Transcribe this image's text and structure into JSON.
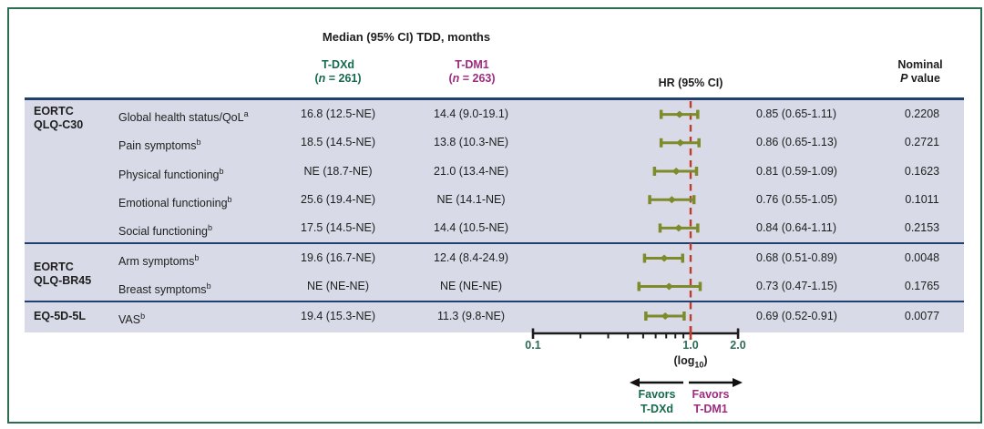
{
  "figure": {
    "title": "Median (95% CI) TDD, months",
    "columns": {
      "tdxd": {
        "name": "T-DXd",
        "n_open": "(",
        "n_italic": "n",
        "n_rest": " = 261)"
      },
      "tdm1": {
        "name": "T-DM1",
        "n_open": "(",
        "n_italic": "n",
        "n_rest": " = 263)"
      },
      "hr_header": "HR (95% CI)",
      "p_header_line1": "Nominal",
      "p_header_italic": "P",
      "p_header_rest": " value"
    },
    "groups": [
      {
        "label_lines": [
          "EORTC",
          "QLQ-C30"
        ],
        "rows": [
          {
            "label": "Global health status/QoL",
            "sup": "a",
            "tdxd": "16.8 (12.5-NE)",
            "tdm1": "14.4 (9.0-19.1)",
            "hr_text": "0.85 (0.65-1.11)",
            "p_value": "0.2208"
          },
          {
            "label": "Pain symptoms",
            "sup": "b",
            "tdxd": "18.5 (14.5-NE)",
            "tdm1": "13.8 (10.3-NE)",
            "hr_text": "0.86 (0.65-1.13)",
            "p_value": "0.2721"
          },
          {
            "label": "Physical functioning",
            "sup": "b",
            "tdxd": "NE (18.7-NE)",
            "tdm1": "21.0 (13.4-NE)",
            "hr_text": "0.81 (0.59-1.09)",
            "p_value": "0.1623"
          },
          {
            "label": "Emotional functioning",
            "sup": "b",
            "tdxd": "25.6 (19.4-NE)",
            "tdm1": "NE (14.1-NE)",
            "hr_text": "0.76 (0.55-1.05)",
            "p_value": "0.1011"
          },
          {
            "label": "Social functioning",
            "sup": "b",
            "tdxd": "17.5 (14.5-NE)",
            "tdm1": "14.4 (10.5-NE)",
            "hr_text": "0.84 (0.64-1.11)",
            "p_value": "0.2153"
          }
        ]
      },
      {
        "label_lines": [
          "EORTC",
          "QLQ-BR45"
        ],
        "rows": [
          {
            "label": "Arm symptoms",
            "sup": "b",
            "tdxd": "19.6 (16.7-NE)",
            "tdm1": "12.4 (8.4-24.9)",
            "hr_text": "0.68 (0.51-0.89)",
            "p_value": "0.0048"
          },
          {
            "label": "Breast symptoms",
            "sup": "b",
            "tdxd": "NE (NE-NE)",
            "tdm1": "NE (NE-NE)",
            "hr_text": "0.73 (0.47-1.15)",
            "p_value": "0.1765"
          }
        ]
      },
      {
        "label_lines": [
          "EQ-5D-5L"
        ],
        "rows": [
          {
            "label": "VAS",
            "sup": "b",
            "tdxd": "19.4 (15.3-NE)",
            "tdm1": "11.3 (9.8-NE)",
            "hr_text": "0.69 (0.52-0.91)",
            "p_value": "0.0077"
          }
        ]
      }
    ],
    "axis_labels": [
      "0.1",
      "1.0",
      "2.0"
    ],
    "xlabel_pre": "(log",
    "xlabel_sub": "10",
    "xlabel_post": ")",
    "favors_left_line1": "Favors",
    "favors_left_line2": "T-DXd",
    "favors_right_line1": "Favors",
    "favors_right_line2": "T-DM1"
  },
  "colors": {
    "tdxd_green": "#156b4c",
    "tdm1_magenta": "#9e2b81",
    "navy_line": "#20406f",
    "band_bg": "#d8dbe7",
    "olive_marker": "#7d8b2a",
    "ref_line_red": "#c13a2c",
    "axis_black": "#1c1c1c",
    "border_green": "#2c6e50"
  },
  "chart_data": {
    "type": "scatter",
    "subtype": "forest_plot",
    "xscale": "log10",
    "xlim": [
      0.1,
      2.0
    ],
    "xticks": [
      0.1,
      0.2,
      0.3,
      0.4,
      0.5,
      0.6,
      0.7,
      0.8,
      0.9,
      1.0,
      2.0
    ],
    "xtick_labels": [
      "0.1",
      "1.0",
      "2.0"
    ],
    "reference_line_x": 1.0,
    "xlabel": "(log10)",
    "legend_left_arrow": "Favors T-DXd",
    "legend_right_arrow": "Favors T-DM1",
    "series": [
      {
        "name": "Global health status/QoL",
        "hr": 0.85,
        "ci": [
          0.65,
          1.11
        ]
      },
      {
        "name": "Pain symptoms",
        "hr": 0.86,
        "ci": [
          0.65,
          1.13
        ]
      },
      {
        "name": "Physical functioning",
        "hr": 0.81,
        "ci": [
          0.59,
          1.09
        ]
      },
      {
        "name": "Emotional functioning",
        "hr": 0.76,
        "ci": [
          0.55,
          1.05
        ]
      },
      {
        "name": "Social functioning",
        "hr": 0.84,
        "ci": [
          0.64,
          1.11
        ]
      },
      {
        "name": "Arm symptoms",
        "hr": 0.68,
        "ci": [
          0.51,
          0.89
        ]
      },
      {
        "name": "Breast symptoms",
        "hr": 0.73,
        "ci": [
          0.47,
          1.15
        ]
      },
      {
        "name": "VAS",
        "hr": 0.69,
        "ci": [
          0.52,
          0.91
        ]
      }
    ]
  }
}
